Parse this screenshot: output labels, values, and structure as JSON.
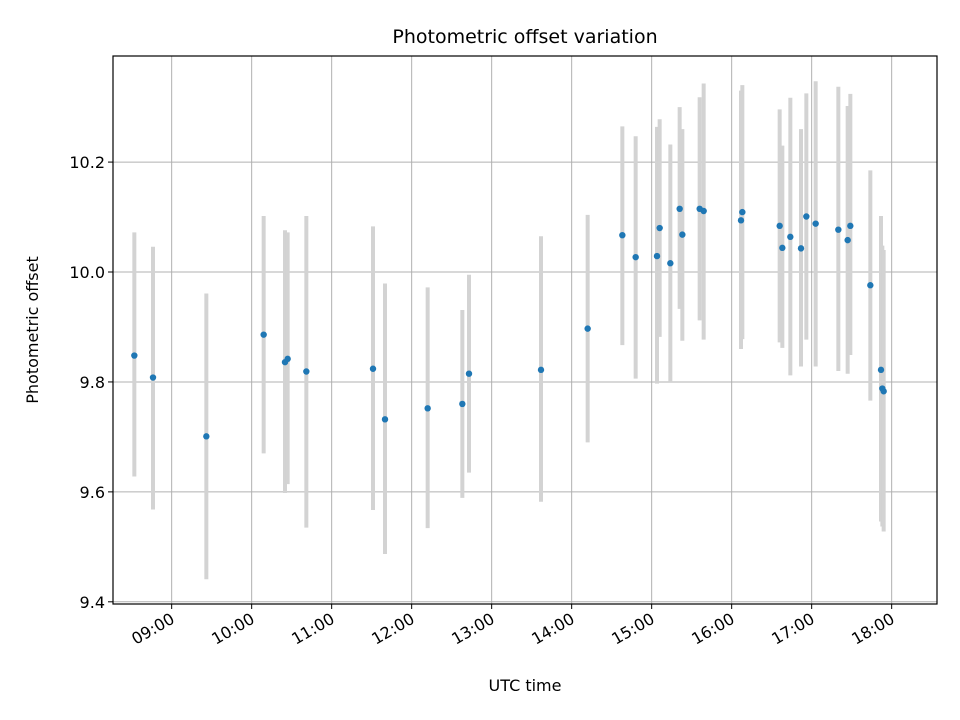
{
  "chart_data": {
    "type": "scatter",
    "title": "Photometric offset variation",
    "xlabel": "UTC time",
    "ylabel": "Photometric offset",
    "x_ticks": [
      "09:00",
      "10:00",
      "11:00",
      "12:00",
      "13:00",
      "14:00",
      "15:00",
      "16:00",
      "17:00",
      "18:00"
    ],
    "y_ticks": [
      "9.4",
      "9.6",
      "9.8",
      "10.0",
      "10.2"
    ],
    "x_tick_hours": [
      9,
      10,
      11,
      12,
      13,
      14,
      15,
      16,
      17,
      18
    ],
    "y_tick_values": [
      9.4,
      9.6,
      9.8,
      10.0,
      10.2
    ],
    "xlim": [
      "08:16",
      "18:34"
    ],
    "ylim": [
      9.396,
      10.393
    ],
    "grid": true,
    "point_color": "#1f77b4",
    "errorbar_color": "#d3d3d3",
    "series": [
      {
        "points": [
          {
            "t": "08:32",
            "y": 9.848,
            "lo": 9.628,
            "hi": 10.072
          },
          {
            "t": "08:46",
            "y": 9.808,
            "lo": 9.568,
            "hi": 10.046
          },
          {
            "t": "09:26",
            "y": 9.701,
            "lo": 9.441,
            "hi": 9.961
          },
          {
            "t": "10:09",
            "y": 9.886,
            "lo": 9.67,
            "hi": 10.102
          },
          {
            "t": "10:25",
            "y": 9.836,
            "lo": 9.598,
            "hi": 10.076
          },
          {
            "t": "10:27",
            "y": 9.842,
            "lo": 9.614,
            "hi": 10.072
          },
          {
            "t": "10:41",
            "y": 9.819,
            "lo": 9.535,
            "hi": 10.102
          },
          {
            "t": "11:31",
            "y": 9.824,
            "lo": 9.567,
            "hi": 10.083
          },
          {
            "t": "11:40",
            "y": 9.732,
            "lo": 9.487,
            "hi": 9.979
          },
          {
            "t": "12:12",
            "y": 9.752,
            "lo": 9.534,
            "hi": 9.972
          },
          {
            "t": "12:38",
            "y": 9.76,
            "lo": 9.589,
            "hi": 9.931
          },
          {
            "t": "12:43",
            "y": 9.815,
            "lo": 9.635,
            "hi": 9.995
          },
          {
            "t": "13:37",
            "y": 9.822,
            "lo": 9.582,
            "hi": 10.065
          },
          {
            "t": "14:12",
            "y": 9.897,
            "lo": 9.69,
            "hi": 10.104
          },
          {
            "t": "14:38",
            "y": 10.067,
            "lo": 9.867,
            "hi": 10.265
          },
          {
            "t": "14:48",
            "y": 10.027,
            "lo": 9.806,
            "hi": 10.247
          },
          {
            "t": "15:04",
            "y": 10.029,
            "lo": 9.797,
            "hi": 10.264
          },
          {
            "t": "15:06",
            "y": 10.08,
            "lo": 9.882,
            "hi": 10.278
          },
          {
            "t": "15:14",
            "y": 10.016,
            "lo": 9.8,
            "hi": 10.232
          },
          {
            "t": "15:21",
            "y": 10.115,
            "lo": 9.933,
            "hi": 10.3
          },
          {
            "t": "15:23",
            "y": 10.068,
            "lo": 9.875,
            "hi": 10.26
          },
          {
            "t": "15:36",
            "y": 10.115,
            "lo": 9.912,
            "hi": 10.318
          },
          {
            "t": "15:39",
            "y": 10.111,
            "lo": 9.877,
            "hi": 10.343
          },
          {
            "t": "16:07",
            "y": 10.094,
            "lo": 9.86,
            "hi": 10.33
          },
          {
            "t": "16:08",
            "y": 10.109,
            "lo": 9.878,
            "hi": 10.34
          },
          {
            "t": "16:36",
            "y": 10.084,
            "lo": 9.872,
            "hi": 10.296
          },
          {
            "t": "16:38",
            "y": 10.044,
            "lo": 9.862,
            "hi": 10.23
          },
          {
            "t": "16:44",
            "y": 10.064,
            "lo": 9.812,
            "hi": 10.317
          },
          {
            "t": "16:52",
            "y": 10.043,
            "lo": 9.828,
            "hi": 10.26
          },
          {
            "t": "16:56",
            "y": 10.101,
            "lo": 9.877,
            "hi": 10.325
          },
          {
            "t": "17:03",
            "y": 10.088,
            "lo": 9.828,
            "hi": 10.347
          },
          {
            "t": "17:20",
            "y": 10.077,
            "lo": 9.82,
            "hi": 10.337
          },
          {
            "t": "17:27",
            "y": 10.058,
            "lo": 9.815,
            "hi": 10.302
          },
          {
            "t": "17:29",
            "y": 10.084,
            "lo": 9.849,
            "hi": 10.324
          },
          {
            "t": "17:44",
            "y": 9.976,
            "lo": 9.766,
            "hi": 10.185
          },
          {
            "t": "17:52",
            "y": 9.822,
            "lo": 9.546,
            "hi": 10.102
          },
          {
            "t": "17:53",
            "y": 9.788,
            "lo": 9.537,
            "hi": 10.048
          },
          {
            "t": "17:54",
            "y": 9.783,
            "lo": 9.528,
            "hi": 10.04
          }
        ]
      }
    ]
  }
}
